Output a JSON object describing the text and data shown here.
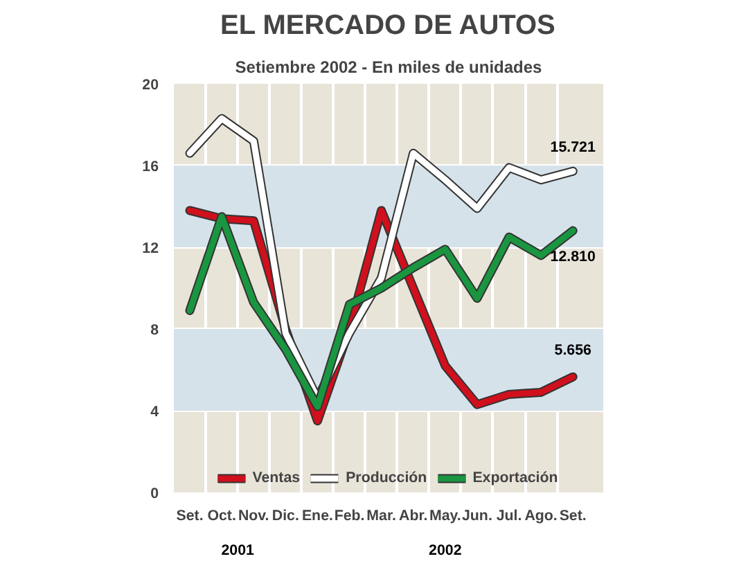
{
  "chart_data": {
    "type": "line",
    "title": "EL MERCADO DE AUTOS",
    "subtitle": "Setiembre 2002 - En miles de unidades",
    "categories": [
      "Set.",
      "Oct.",
      "Nov.",
      "Dic.",
      "Ene.",
      "Feb.",
      "Mar.",
      "Abr.",
      "May.",
      "Jun.",
      "Jul.",
      "Ago.",
      "Set."
    ],
    "series": [
      {
        "name": "Ventas",
        "color": "#d0101c",
        "values": [
          13.8,
          13.4,
          13.3,
          8,
          3.5,
          8,
          13.8,
          10,
          6.2,
          4.3,
          4.8,
          4.9,
          5.656
        ],
        "value_labels": [
          null,
          null,
          null,
          null,
          null,
          null,
          null,
          null,
          null,
          null,
          null,
          null,
          "5.656"
        ]
      },
      {
        "name": "Producción",
        "color": "#ffffff",
        "values": [
          16.6,
          18.3,
          17.2,
          7.8,
          4.6,
          7.8,
          10.5,
          16.6,
          15.3,
          13.9,
          15.9,
          15.3,
          15.721
        ],
        "value_labels": [
          null,
          null,
          null,
          null,
          null,
          null,
          null,
          null,
          null,
          null,
          null,
          null,
          "15.721"
        ]
      },
      {
        "name": "Exportación",
        "color": "#1a9641",
        "values": [
          8.9,
          13.5,
          9.3,
          7,
          4.2,
          9.2,
          10,
          11,
          11.9,
          9.5,
          12.5,
          11.6,
          12.81
        ],
        "value_labels": [
          null,
          null,
          null,
          null,
          null,
          null,
          null,
          null,
          null,
          null,
          null,
          null,
          "12.810"
        ]
      }
    ],
    "ylim": [
      0,
      20
    ],
    "yticks": [
      0,
      4,
      8,
      12,
      16,
      20
    ],
    "grid": true,
    "legend": "bottom",
    "line_style": "solid",
    "bands": [
      {
        "axis": "y",
        "from": 4,
        "to": 8,
        "color": "#d6e2ea"
      },
      {
        "axis": "y",
        "from": 12,
        "to": 16,
        "color": "#d6e2ea"
      }
    ],
    "annotations": [
      "2001",
      "2002"
    ]
  }
}
